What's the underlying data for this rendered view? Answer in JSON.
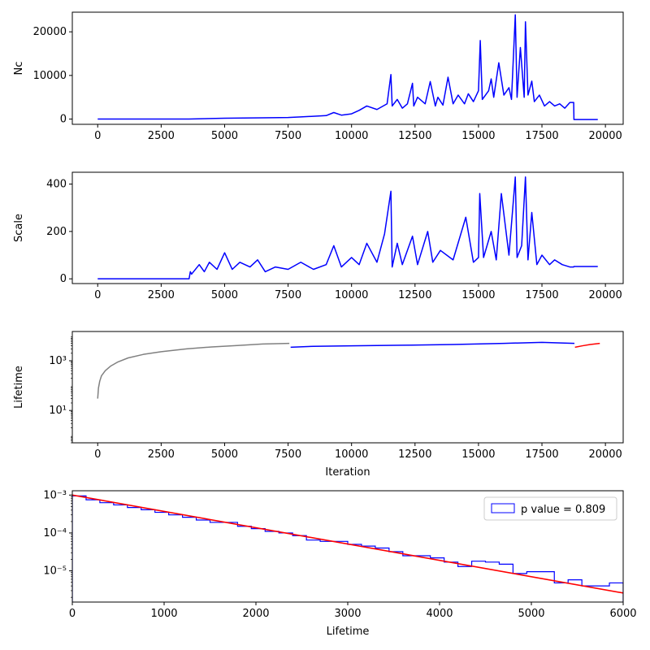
{
  "chart_data": [
    {
      "type": "line",
      "ylabel": "Nc",
      "xlabel": "",
      "xlim": [
        -1000,
        20700
      ],
      "ylim": [
        -1200,
        24500
      ],
      "xticks": [
        0,
        2500,
        5000,
        7500,
        10000,
        12500,
        15000,
        17500,
        20000
      ],
      "xtick_labels": [
        "0",
        "2500",
        "5000",
        "7500",
        "10000",
        "12500",
        "15000",
        "17500",
        "20000"
      ],
      "yticks": [
        0,
        10000,
        20000
      ],
      "ytick_labels": [
        "0",
        "10000",
        "20000"
      ],
      "series": [
        {
          "color": "#0000ff",
          "x": [
            0,
            2000,
            3600,
            5000,
            6500,
            7500,
            8000,
            9000,
            9300,
            9600,
            10000,
            10300,
            10600,
            11000,
            11400,
            11550,
            11600,
            11800,
            12000,
            12200,
            12400,
            12450,
            12600,
            12900,
            13100,
            13300,
            13400,
            13600,
            13800,
            14000,
            14200,
            14450,
            14600,
            14800,
            15000,
            15070,
            15150,
            15400,
            15500,
            15600,
            15800,
            16000,
            16200,
            16300,
            16450,
            16520,
            16650,
            16800,
            16850,
            16950,
            17100,
            17200,
            17400,
            17600,
            17800,
            18000,
            18200,
            18400,
            18600,
            18750,
            18760,
            19700
          ],
          "y": [
            0,
            0,
            0,
            200,
            300,
            350,
            500,
            800,
            1500,
            900,
            1200,
            2000,
            3000,
            2200,
            3500,
            10200,
            3000,
            4500,
            2500,
            3500,
            8200,
            3000,
            5000,
            3500,
            8600,
            3000,
            5000,
            3200,
            9600,
            3500,
            5500,
            3500,
            5800,
            4000,
            6500,
            18000,
            4500,
            6500,
            9200,
            5000,
            12900,
            5500,
            7200,
            4500,
            23900,
            5000,
            16400,
            5000,
            22300,
            5500,
            8700,
            4000,
            5500,
            3000,
            4000,
            3000,
            3500,
            2500,
            3800,
            3800,
            -100,
            -100
          ]
        }
      ]
    },
    {
      "type": "line",
      "ylabel": "Scale",
      "xlabel": "",
      "xlim": [
        -1000,
        20700
      ],
      "ylim": [
        -20,
        450
      ],
      "xticks": [
        0,
        2500,
        5000,
        7500,
        10000,
        12500,
        15000,
        17500,
        20000
      ],
      "xtick_labels": [
        "0",
        "2500",
        "5000",
        "7500",
        "10000",
        "12500",
        "15000",
        "17500",
        "20000"
      ],
      "yticks": [
        0,
        200,
        400
      ],
      "ytick_labels": [
        "0",
        "200",
        "400"
      ],
      "series": [
        {
          "color": "#0000ff",
          "x": [
            0,
            3600,
            3650,
            3700,
            4000,
            4200,
            4400,
            4700,
            5000,
            5300,
            5600,
            6000,
            6300,
            6600,
            7000,
            7500,
            8000,
            8500,
            9000,
            9300,
            9600,
            10000,
            10300,
            10600,
            11000,
            11300,
            11550,
            11600,
            11800,
            12000,
            12400,
            12600,
            13000,
            13200,
            13500,
            14000,
            14500,
            14800,
            15000,
            15050,
            15200,
            15500,
            15700,
            15900,
            16200,
            16450,
            16520,
            16700,
            16850,
            16950,
            17100,
            17300,
            17500,
            17800,
            18000,
            18300,
            18600,
            18750,
            18760,
            19700
          ],
          "y": [
            0,
            0,
            30,
            20,
            60,
            30,
            70,
            40,
            110,
            40,
            70,
            50,
            80,
            30,
            50,
            40,
            70,
            40,
            60,
            140,
            50,
            90,
            60,
            150,
            70,
            190,
            370,
            50,
            150,
            60,
            180,
            60,
            200,
            70,
            120,
            80,
            260,
            70,
            90,
            360,
            90,
            200,
            80,
            360,
            100,
            430,
            90,
            140,
            430,
            80,
            280,
            60,
            100,
            60,
            80,
            60,
            50,
            50,
            52,
            52
          ]
        }
      ]
    },
    {
      "type": "line",
      "ylabel": "Lifetime",
      "xlabel": "Iteration",
      "scale_y": "log",
      "xlim": [
        -1000,
        20700
      ],
      "ylim": [
        0.5,
        15000
      ],
      "xticks": [
        0,
        2500,
        5000,
        7500,
        10000,
        12500,
        15000,
        17500,
        20000
      ],
      "xtick_labels": [
        "0",
        "2500",
        "5000",
        "7500",
        "10000",
        "12500",
        "15000",
        "17500",
        "20000"
      ],
      "yticks": [
        10,
        1000
      ],
      "ytick_labels": [
        "10¹",
        "10³"
      ],
      "series": [
        {
          "color": "#808080",
          "x": [
            0,
            30,
            80,
            150,
            300,
            500,
            800,
            1200,
            1800,
            2500,
            3500,
            4500,
            5500,
            6500,
            7550
          ],
          "y": [
            30,
            80,
            150,
            250,
            400,
            600,
            900,
            1300,
            1800,
            2300,
            3000,
            3600,
            4100,
            4700,
            5000
          ]
        },
        {
          "color": "#0000ff",
          "x": [
            7600,
            8500,
            10000,
            12000,
            14000,
            16000,
            17500,
            18780
          ],
          "y": [
            3500,
            3800,
            4000,
            4200,
            4500,
            5000,
            5500,
            5000
          ]
        },
        {
          "color": "#ff0000",
          "x": [
            18800,
            19100,
            19400,
            19780
          ],
          "y": [
            3500,
            4000,
            4500,
            5000
          ]
        }
      ]
    },
    {
      "type": "histogram",
      "xlabel": "Lifetime",
      "ylabel": "",
      "scale_y": "log",
      "xlim": [
        0,
        6000
      ],
      "ylim": [
        1.5e-06,
        0.0013
      ],
      "xticks": [
        0,
        1000,
        2000,
        3000,
        4000,
        5000,
        6000
      ],
      "xtick_labels": [
        "0",
        "1000",
        "2000",
        "3000",
        "4000",
        "5000",
        "6000"
      ],
      "yticks": [
        1e-05,
        0.0001,
        0.001
      ],
      "ytick_labels": [
        "10⁻⁵",
        "10⁻⁴",
        "10⁻³"
      ],
      "legend": {
        "label": "p value = 0.809",
        "placement": "top-right"
      },
      "bins_x": [
        0,
        150,
        300,
        450,
        600,
        750,
        900,
        1050,
        1200,
        1350,
        1500,
        1650,
        1800,
        1950,
        2100,
        2250,
        2400,
        2550,
        2700,
        2850,
        3000,
        3150,
        3300,
        3450,
        3600,
        3750,
        3900,
        4050,
        4200,
        4350,
        4500,
        4650,
        4800,
        4950,
        5100,
        5250,
        5400,
        5550,
        5700,
        5850,
        6000
      ],
      "counts": [
        0.00095,
        0.00075,
        0.00063,
        0.00055,
        0.00047,
        0.00041,
        0.00035,
        0.0003,
        0.00026,
        0.00022,
        0.00019,
        0.00019,
        0.00015,
        0.00013,
        0.00011,
        0.0001,
        8.5e-05,
        6.5e-05,
        6e-05,
        6e-05,
        5e-05,
        4.5e-05,
        4e-05,
        3.2e-05,
        2.5e-05,
        2.5e-05,
        2.2e-05,
        1.7e-05,
        1.3e-05,
        1.8e-05,
        1.7e-05,
        1.5e-05,
        8.5e-06,
        9.5e-06,
        9.5e-06,
        4.8e-06,
        5.8e-06,
        4e-06,
        4e-06,
        4.8e-06
      ],
      "histogram_color": "#0000ff",
      "fit": {
        "color": "#ff0000",
        "x": [
          0,
          6000
        ],
        "y": [
          0.001,
          2.6e-06
        ]
      }
    }
  ]
}
